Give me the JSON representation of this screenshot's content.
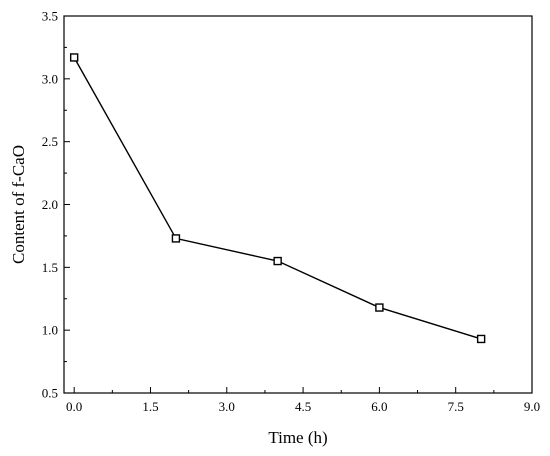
{
  "chart_data": {
    "type": "line",
    "title": "",
    "xlabel": "Time (h)",
    "ylabel": "Content of f-CaO",
    "xlim": [
      -0.2,
      9.0
    ],
    "ylim": [
      0.5,
      3.5
    ],
    "x_ticks": [
      0.0,
      1.5,
      3.0,
      4.5,
      6.0,
      7.5,
      9.0
    ],
    "x_tick_labels": [
      "0.0",
      "1.5",
      "3.0",
      "4.5",
      "6.0",
      "7.5",
      "9.0"
    ],
    "y_ticks": [
      0.5,
      1.0,
      1.5,
      2.0,
      2.5,
      3.0,
      3.5
    ],
    "y_tick_labels": [
      "0.5",
      "1.0",
      "1.5",
      "2.0",
      "2.5",
      "3.0",
      "3.5"
    ],
    "grid": false,
    "legend": "none",
    "marker": "open-square",
    "line_color": "#000000",
    "series": [
      {
        "x": [
          0,
          2,
          4,
          6,
          8
        ],
        "values": [
          3.17,
          1.73,
          1.55,
          1.18,
          0.93
        ]
      }
    ]
  }
}
